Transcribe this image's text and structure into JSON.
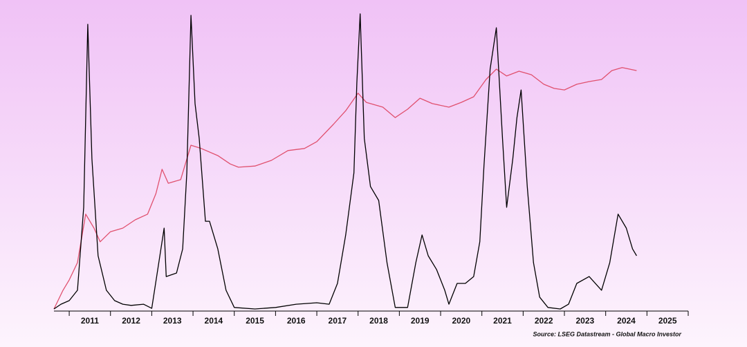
{
  "chart_data": {
    "type": "line",
    "source": "Source: LSEG Datastream - Global Macro Investor",
    "xlim": [
      2010.63,
      2026
    ],
    "ylim": [
      0,
      100
    ],
    "xticks": [
      {
        "value": 2011,
        "label": "2011"
      },
      {
        "value": 2012,
        "label": "2012"
      },
      {
        "value": 2013,
        "label": "2013"
      },
      {
        "value": 2014,
        "label": "2014"
      },
      {
        "value": 2015,
        "label": "2015"
      },
      {
        "value": 2016,
        "label": "2016"
      },
      {
        "value": 2017,
        "label": "2017"
      },
      {
        "value": 2018,
        "label": "2018"
      },
      {
        "value": 2019,
        "label": "2019"
      },
      {
        "value": 2020,
        "label": "2020"
      },
      {
        "value": 2021,
        "label": "2021"
      },
      {
        "value": 2022,
        "label": "2022"
      },
      {
        "value": 2023,
        "label": "2023"
      },
      {
        "value": 2024,
        "label": "2024"
      },
      {
        "value": 2025,
        "label": "2025"
      }
    ],
    "series": [
      {
        "color": "#e0506e",
        "x": [
          2010.63,
          2010.85,
          2011.0,
          2011.2,
          2011.4,
          2011.6,
          2011.75,
          2012.0,
          2012.3,
          2012.6,
          2012.9,
          2013.1,
          2013.25,
          2013.4,
          2013.7,
          2013.95,
          2014.2,
          2014.6,
          2014.9,
          2015.1,
          2015.5,
          2015.9,
          2016.3,
          2016.7,
          2017.0,
          2017.4,
          2017.7,
          2018.0,
          2018.2,
          2018.6,
          2018.9,
          2019.2,
          2019.5,
          2019.8,
          2020.2,
          2020.5,
          2020.8,
          2021.1,
          2021.35,
          2021.6,
          2021.9,
          2022.2,
          2022.5,
          2022.75,
          2023.0,
          2023.3,
          2023.6,
          2023.9,
          2024.15,
          2024.4,
          2024.75
        ],
        "values": [
          0.7,
          7.0,
          10.5,
          16.3,
          32.6,
          27.9,
          23.3,
          26.7,
          27.9,
          30.7,
          32.6,
          39.5,
          47.7,
          43.0,
          44.2,
          55.8,
          54.7,
          52.3,
          49.5,
          48.4,
          48.8,
          50.7,
          54.0,
          54.7,
          57.0,
          62.8,
          67.4,
          73.3,
          70.2,
          68.6,
          65.1,
          67.9,
          71.6,
          69.8,
          68.6,
          70.2,
          72.1,
          77.9,
          81.4,
          79.1,
          80.7,
          79.5,
          76.3,
          74.9,
          74.4,
          76.3,
          77.2,
          77.9,
          80.9,
          81.9,
          80.9
        ]
      },
      {
        "color": "#000000",
        "x": [
          2010.63,
          2010.8,
          2011.0,
          2011.2,
          2011.35,
          2011.45,
          2011.55,
          2011.7,
          2011.9,
          2012.1,
          2012.3,
          2012.5,
          2012.8,
          2013.0,
          2013.3,
          2013.35,
          2013.6,
          2013.75,
          2013.85,
          2013.95,
          2014.05,
          2014.15,
          2014.3,
          2014.4,
          2014.6,
          2014.8,
          2015.0,
          2015.5,
          2016.0,
          2016.5,
          2017.0,
          2017.3,
          2017.5,
          2017.7,
          2017.9,
          2017.97,
          2018.05,
          2018.15,
          2018.3,
          2018.5,
          2018.7,
          2018.9,
          2019.2,
          2019.4,
          2019.55,
          2019.7,
          2019.9,
          2020.1,
          2020.2,
          2020.4,
          2020.6,
          2020.8,
          2020.95,
          2021.05,
          2021.2,
          2021.35,
          2021.5,
          2021.6,
          2021.75,
          2021.85,
          2021.95,
          2022.1,
          2022.25,
          2022.4,
          2022.6,
          2022.9,
          2023.1,
          2023.3,
          2023.6,
          2023.9,
          2024.1,
          2024.3,
          2024.5,
          2024.65,
          2024.75
        ],
        "values": [
          0.7,
          2.3,
          3.5,
          7.0,
          34.9,
          96.5,
          51.2,
          18.6,
          7.0,
          3.5,
          2.3,
          1.9,
          2.3,
          0.9,
          27.9,
          11.6,
          12.8,
          20.9,
          46.5,
          99.5,
          69.8,
          58.1,
          30.2,
          30.2,
          20.9,
          7.0,
          1.2,
          0.7,
          1.2,
          2.3,
          2.8,
          2.3,
          9.3,
          25.6,
          46.5,
          76.7,
          100,
          58.1,
          41.9,
          37.2,
          16.3,
          1.2,
          1.2,
          16.3,
          25.6,
          18.6,
          14.0,
          7.0,
          2.3,
          9.3,
          9.3,
          11.6,
          23.3,
          48.8,
          81.4,
          95.3,
          58.1,
          34.9,
          51.2,
          65.1,
          74.4,
          41.9,
          16.3,
          4.7,
          1.2,
          0.7,
          2.3,
          9.3,
          11.6,
          7.0,
          16.3,
          32.6,
          27.9,
          20.9,
          18.6
        ]
      }
    ]
  }
}
